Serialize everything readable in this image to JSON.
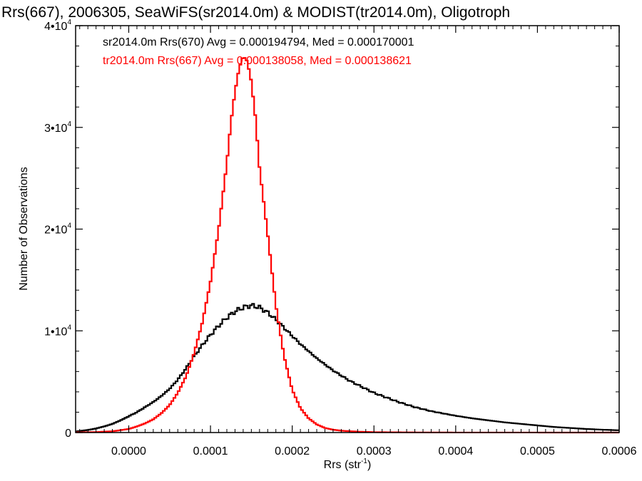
{
  "chart_data": {
    "type": "histogram",
    "title": "Rrs(667), 2006305, SeaWiFS(sr2014.0m) & MODIST(tr2014.0m), Oligotroph",
    "xlabel": "Rrs (str",
    "xlabel_sup": "-1",
    "xlabel_end": ")",
    "ylabel": "Number of Observations",
    "xlim": [
      -6.5e-05,
      0.0006
    ],
    "ylim": [
      0,
      40000
    ],
    "xticks": [
      0.0,
      0.0001,
      0.0002,
      0.0003,
      0.0004,
      0.0005,
      0.0006
    ],
    "xtick_labels": [
      "0.0000",
      "0.0001",
      "0.0002",
      "0.0003",
      "0.0004",
      "0.0005",
      "0.0006"
    ],
    "yticks": [
      {
        "value": 0,
        "base": "0",
        "exp": ""
      },
      {
        "value": 10000,
        "base": "1•10",
        "exp": "4"
      },
      {
        "value": 20000,
        "base": "2•10",
        "exp": "4"
      },
      {
        "value": 30000,
        "base": "3•10",
        "exp": "4"
      },
      {
        "value": 40000,
        "base": "4•10",
        "exp": "4"
      }
    ],
    "annotations": [
      {
        "text": "sr2014.0m Rrs(670) Avg = 0.000194794, Med = 0.000170001",
        "color": "#000000"
      },
      {
        "text": "tr2014.0m Rrs(667) Avg = 0.000138058, Med = 0.000138621",
        "color": "#ff0000"
      }
    ],
    "series": [
      {
        "color": "#000000",
        "points": [
          [
            -6.5e-05,
            100
          ],
          [
            -5e-05,
            250
          ],
          [
            -4e-05,
            400
          ],
          [
            -3e-05,
            600
          ],
          [
            -2e-05,
            850
          ],
          [
            -1e-05,
            1200
          ],
          [
            0.0,
            1600
          ],
          [
            1e-05,
            2000
          ],
          [
            2e-05,
            2500
          ],
          [
            3e-05,
            3000
          ],
          [
            4e-05,
            3600
          ],
          [
            5e-05,
            4300
          ],
          [
            6e-05,
            5200
          ],
          [
            7e-05,
            6300
          ],
          [
            8e-05,
            7500
          ],
          [
            9e-05,
            8600
          ],
          [
            0.0001,
            9600
          ],
          [
            0.00011,
            10500
          ],
          [
            0.00012,
            11300
          ],
          [
            0.00013,
            11900
          ],
          [
            0.00014,
            12300
          ],
          [
            0.00015,
            12500
          ],
          [
            0.00016,
            12300
          ],
          [
            0.00017,
            11800
          ],
          [
            0.00018,
            11100
          ],
          [
            0.00019,
            10300
          ],
          [
            0.0002,
            9500
          ],
          [
            0.00021,
            8700
          ],
          [
            0.00022,
            8000
          ],
          [
            0.00023,
            7300
          ],
          [
            0.00024,
            6700
          ],
          [
            0.00025,
            6100
          ],
          [
            0.00026,
            5600
          ],
          [
            0.00027,
            5100
          ],
          [
            0.00028,
            4700
          ],
          [
            0.00029,
            4300
          ],
          [
            0.0003,
            3900
          ],
          [
            0.00031,
            3600
          ],
          [
            0.00032,
            3300
          ],
          [
            0.00033,
            3000
          ],
          [
            0.00034,
            2750
          ],
          [
            0.00035,
            2500
          ],
          [
            0.00036,
            2300
          ],
          [
            0.00037,
            2100
          ],
          [
            0.00038,
            1950
          ],
          [
            0.00039,
            1800
          ],
          [
            0.0004,
            1650
          ],
          [
            0.00042,
            1400
          ],
          [
            0.00044,
            1200
          ],
          [
            0.00046,
            1000
          ],
          [
            0.00048,
            850
          ],
          [
            0.0005,
            700
          ],
          [
            0.00052,
            550
          ],
          [
            0.00054,
            450
          ],
          [
            0.00056,
            350
          ],
          [
            0.00058,
            280
          ],
          [
            0.0006,
            220
          ]
        ]
      },
      {
        "color": "#ff0000",
        "points": [
          [
            -6.5e-05,
            20
          ],
          [
            -4e-05,
            50
          ],
          [
            -2e-05,
            120
          ],
          [
            0.0,
            350
          ],
          [
            1e-05,
            600
          ],
          [
            2e-05,
            900
          ],
          [
            3e-05,
            1300
          ],
          [
            4e-05,
            1900
          ],
          [
            5e-05,
            2700
          ],
          [
            6e-05,
            3900
          ],
          [
            7e-05,
            5500
          ],
          [
            8e-05,
            7800
          ],
          [
            9e-05,
            10800
          ],
          [
            0.0001,
            14800
          ],
          [
            0.00011,
            20000
          ],
          [
            0.00012,
            26500
          ],
          [
            0.000125,
            30500
          ],
          [
            0.00013,
            33500
          ],
          [
            0.000135,
            35800
          ],
          [
            0.00014,
            37000
          ],
          [
            0.000145,
            36500
          ],
          [
            0.00015,
            34500
          ],
          [
            0.000155,
            31000
          ],
          [
            0.00016,
            26000
          ],
          [
            0.00017,
            19500
          ],
          [
            0.00018,
            12500
          ],
          [
            0.00019,
            7500
          ],
          [
            0.0002,
            4200
          ],
          [
            0.00021,
            2400
          ],
          [
            0.00022,
            1400
          ],
          [
            0.00023,
            800
          ],
          [
            0.00024,
            450
          ],
          [
            0.00025,
            280
          ],
          [
            0.00026,
            180
          ],
          [
            0.00028,
            90
          ],
          [
            0.0003,
            40
          ],
          [
            0.00035,
            15
          ],
          [
            0.0004,
            5
          ],
          [
            0.0006,
            0
          ]
        ]
      }
    ]
  }
}
